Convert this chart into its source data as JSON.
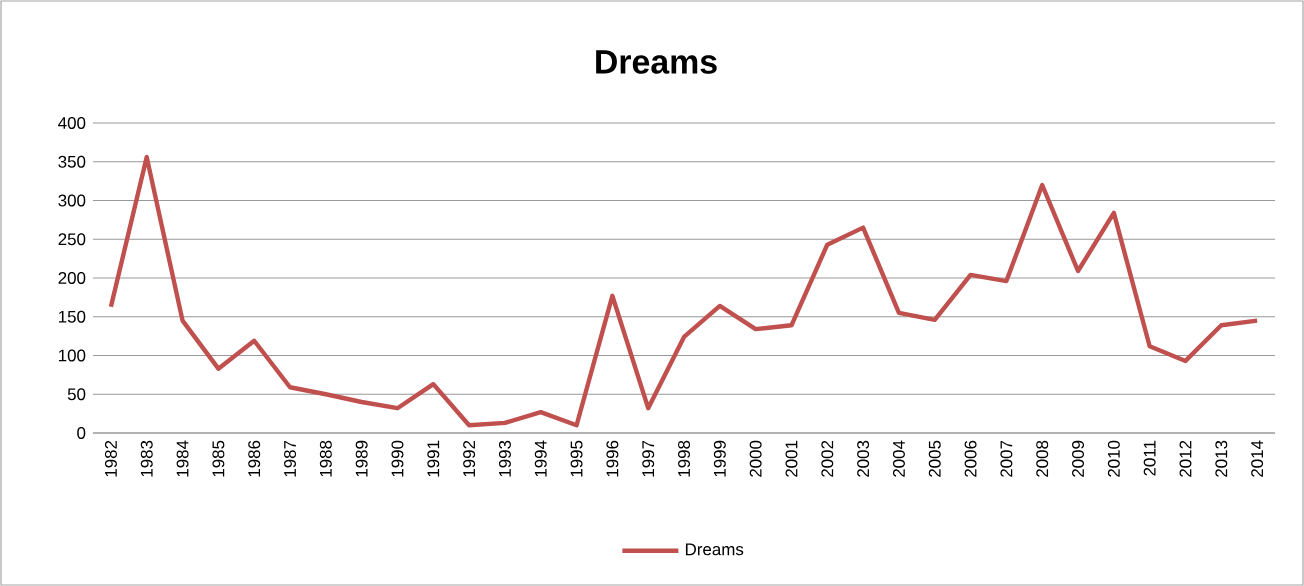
{
  "chart_data": {
    "type": "line",
    "title": "Dreams",
    "categories": [
      "1982",
      "1983",
      "1984",
      "1985",
      "1986",
      "1987",
      "1988",
      "1989",
      "1990",
      "1991",
      "1992",
      "1993",
      "1994",
      "1995",
      "1996",
      "1997",
      "1998",
      "1999",
      "2000",
      "2001",
      "2002",
      "2003",
      "2004",
      "2005",
      "2006",
      "2007",
      "2008",
      "2009",
      "2010",
      "2011",
      "2012",
      "2013",
      "2014"
    ],
    "series": [
      {
        "name": "Dreams",
        "color": "#c0504d",
        "values": [
          163,
          356,
          145,
          83,
          119,
          59,
          50,
          40,
          32,
          63,
          10,
          13,
          27,
          10,
          177,
          32,
          124,
          164,
          134,
          139,
          243,
          265,
          155,
          146,
          204,
          196,
          320,
          209,
          284,
          112,
          93,
          139,
          145
        ]
      }
    ],
    "ylim": [
      0,
      400
    ],
    "yticks": [
      0,
      50,
      100,
      150,
      200,
      250,
      300,
      350,
      400
    ],
    "grid": "y",
    "legend": "bottom",
    "marker": "none",
    "line_style": "solid"
  }
}
